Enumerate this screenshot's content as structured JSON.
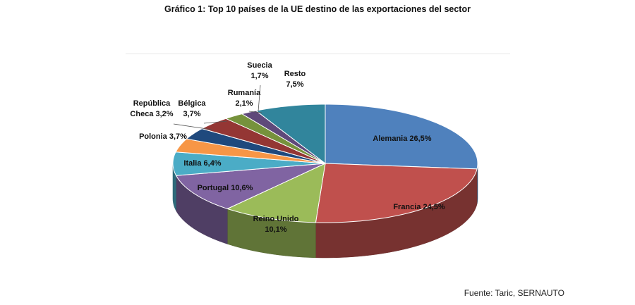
{
  "title": "Gráfico 1: Top 10 países de la UE destino de las exportaciones del sector",
  "source": "Fuente: Taric, SERNAUTO",
  "chart_data": {
    "type": "pie",
    "title": "Gráfico 1: Top 10 países de la UE destino de las exportaciones del sector",
    "unit": "%",
    "slices": [
      {
        "name": "Alemania",
        "value": 26.5,
        "label_lines": [
          "Alemania 26,5%"
        ],
        "color": "#4f81bd"
      },
      {
        "name": "Francia",
        "value": 24.5,
        "label_lines": [
          "Francia 24,5%"
        ],
        "color": "#c0504d"
      },
      {
        "name": "Reino Unido",
        "value": 10.1,
        "label_lines": [
          "Reino Unido",
          "10,1%"
        ],
        "color": "#9bbb59"
      },
      {
        "name": "Portugal",
        "value": 10.6,
        "label_lines": [
          "Portugal 10,6%"
        ],
        "color": "#8064a2"
      },
      {
        "name": "Italia",
        "value": 6.4,
        "label_lines": [
          "Italia 6,4%"
        ],
        "color": "#4bacc6"
      },
      {
        "name": "Polonia",
        "value": 3.7,
        "label_lines": [
          "Polonia 3,7%"
        ],
        "color": "#f79646"
      },
      {
        "name": "República Checa",
        "value": 3.2,
        "label_lines": [
          "República",
          "Checa 3,2%"
        ],
        "color": "#1f497d"
      },
      {
        "name": "Bélgica",
        "value": 3.7,
        "label_lines": [
          "Bélgica",
          "3,7%"
        ],
        "color": "#943634"
      },
      {
        "name": "Rumanía",
        "value": 2.1,
        "label_lines": [
          "Rumanía",
          "2,1%"
        ],
        "color": "#76923c"
      },
      {
        "name": "Suecia",
        "value": 1.7,
        "label_lines": [
          "Suecia",
          "1,7%"
        ],
        "color": "#5f497a"
      },
      {
        "name": "Resto",
        "value": 7.5,
        "label_lines": [
          "Resto",
          "7,5%"
        ],
        "color": "#31859c"
      }
    ]
  }
}
